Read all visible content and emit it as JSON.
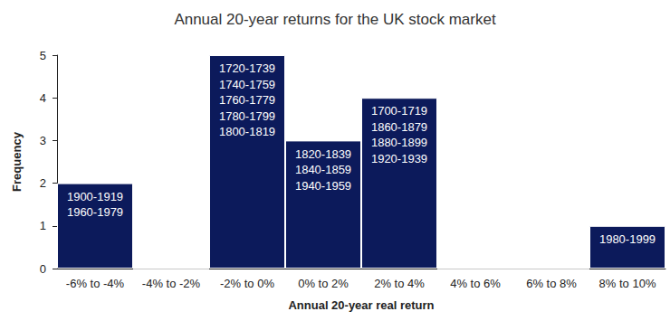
{
  "chart_data": {
    "type": "bar",
    "title": "Annual 20-year returns for the UK stock market",
    "x_label": "Annual 20-year real return",
    "y_label": "Frequency",
    "categories": [
      "-6% to -4%",
      "-4% to -2%",
      "-2% to 0%",
      "0% to 2%",
      "2% to 4%",
      "4% to 6%",
      "6% to 8%",
      "8% to 10%"
    ],
    "values": [
      2,
      0,
      5,
      3,
      4,
      0,
      0,
      1
    ],
    "annotations": [
      [
        "1900-1919",
        "1960-1979"
      ],
      null,
      [
        "1720-1739",
        "1740-1759",
        "1760-1779",
        "1780-1799",
        "1800-1819"
      ],
      [
        "1820-1839",
        "1840-1859",
        "1940-1959"
      ],
      [
        "1700-1719",
        "1860-1879",
        "1880-1899",
        "1920-1939"
      ],
      null,
      null,
      [
        "1980-1999"
      ]
    ],
    "color": "#0c1a5b",
    "ylim": [
      0,
      5
    ],
    "yticks": [
      0,
      1,
      2,
      3,
      4,
      5
    ],
    "grid": false
  }
}
